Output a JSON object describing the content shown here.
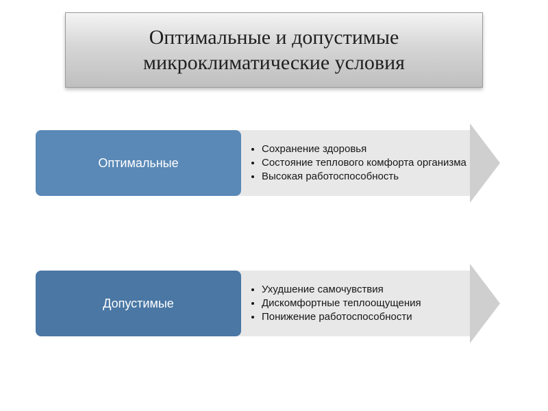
{
  "header": {
    "title": "Оптимальные и допустимые микроклиматические условия",
    "bg_gradient_top": "#f4f4f4",
    "bg_gradient_bottom": "#bfbfbf",
    "border_color": "#9a9a9a",
    "title_color": "#202020",
    "title_fontsize": 30
  },
  "rows": [
    {
      "label": "Оптимальные",
      "box_color": "#5a89b7",
      "arrow_body_color": "#e8e8e8",
      "arrow_head_color": "#cfcfcf",
      "bullets": [
        "Сохранение здоровья",
        "Состояние теплового комфорта организма",
        "Высокая работоспособность"
      ]
    },
    {
      "label": "Допустимые",
      "box_color": "#4a77a4",
      "arrow_body_color": "#e8e8e8",
      "arrow_head_color": "#cfcfcf",
      "bullets": [
        "Ухудшение самочувствия",
        "Дискомфортные теплоощущения",
        "Понижение работоспособности"
      ]
    }
  ],
  "styling": {
    "page_bg": "#ffffff",
    "label_text_color": "#ffffff",
    "label_fontsize": 18,
    "bullet_fontsize": 15,
    "bullet_color": "#161616",
    "box_radius": 8
  }
}
